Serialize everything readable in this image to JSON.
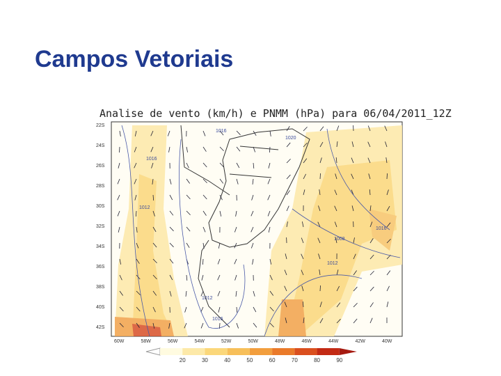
{
  "slide": {
    "title": "Campos Vetoriais"
  },
  "map": {
    "title": "Analise de vento (km/h) e PNMM (hPa) para 06/04/2011_12Z",
    "lat_labels": [
      "22S",
      "24S",
      "26S",
      "28S",
      "30S",
      "32S",
      "34S",
      "36S",
      "38S",
      "40S",
      "42S"
    ],
    "lon_labels": [
      "60W",
      "58W",
      "56W",
      "54W",
      "52W",
      "50W",
      "48W",
      "46W",
      "44W",
      "42W",
      "40W"
    ],
    "isobars": [
      "1016",
      "1012",
      "1016",
      "1020",
      "1012",
      "1016",
      "1008",
      "1012",
      "1016"
    ]
  },
  "colorbar": {
    "labels": [
      "20",
      "30",
      "40",
      "50",
      "60",
      "70",
      "80",
      "90"
    ]
  }
}
